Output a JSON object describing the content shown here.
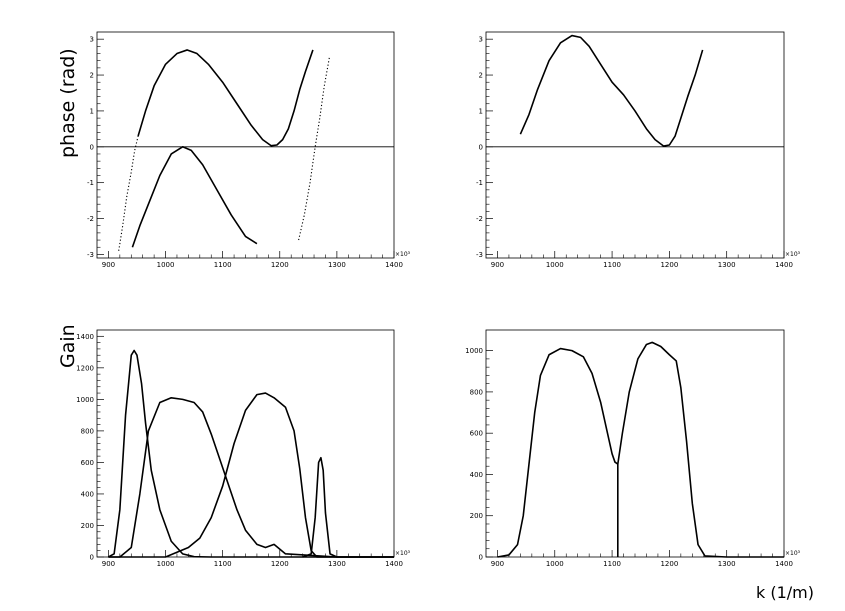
{
  "labels": {
    "phase_ylabel": "phase (rad)",
    "gain_ylabel": "Gain",
    "xlabel": "k (1/m)",
    "x_exponent": "×10³"
  },
  "chart_data": [
    {
      "type": "line",
      "panel": "top-left",
      "xlabel": "",
      "ylabel": "phase (rad)",
      "xlim": [
        880,
        1400
      ],
      "ylim": [
        -3.1,
        3.2
      ],
      "xticks": [
        900,
        1000,
        1100,
        1200,
        1300,
        1400
      ],
      "yticks": [
        -3,
        -2,
        -1,
        0,
        1,
        2,
        3
      ],
      "x_multiplier": "×10³",
      "hline": 0,
      "series": [
        {
          "style": "dotted",
          "x": [
            918,
            925,
            932,
            940,
            946,
            952
          ],
          "y": [
            -2.9,
            -2.2,
            -1.4,
            -0.7,
            -0.1,
            0.3
          ]
        },
        {
          "style": "solid",
          "x": [
            952,
            965,
            980,
            1000,
            1020,
            1038,
            1055,
            1075,
            1100,
            1125,
            1150,
            1170,
            1185,
            1195,
            1205,
            1215,
            1225,
            1235,
            1245,
            1258
          ],
          "y": [
            0.3,
            1.0,
            1.7,
            2.3,
            2.6,
            2.7,
            2.6,
            2.3,
            1.8,
            1.2,
            0.6,
            0.2,
            0.03,
            0.05,
            0.2,
            0.5,
            1.0,
            1.6,
            2.1,
            2.7
          ]
        },
        {
          "style": "solid",
          "x": [
            942,
            955,
            970,
            990,
            1010,
            1030,
            1045,
            1065,
            1090,
            1115,
            1140,
            1160
          ],
          "y": [
            -2.8,
            -2.2,
            -1.6,
            -0.8,
            -0.2,
            0.0,
            -0.1,
            -0.5,
            -1.2,
            -1.9,
            -2.5,
            -2.7
          ]
        },
        {
          "style": "dotted",
          "x": [
            1233,
            1243,
            1253,
            1262,
            1270,
            1278,
            1287
          ],
          "y": [
            -2.6,
            -1.9,
            -1.0,
            0.0,
            0.8,
            1.7,
            2.5
          ]
        }
      ]
    },
    {
      "type": "line",
      "panel": "top-right",
      "xlabel": "",
      "ylabel": "",
      "xlim": [
        880,
        1400
      ],
      "ylim": [
        -3.1,
        3.2
      ],
      "xticks": [
        900,
        1000,
        1100,
        1200,
        1300,
        1400
      ],
      "yticks": [
        -3,
        -2,
        -1,
        0,
        1,
        2,
        3
      ],
      "x_multiplier": "×10³",
      "hline": 0,
      "series": [
        {
          "style": "solid",
          "x": [
            940,
            955,
            970,
            990,
            1010,
            1030,
            1045,
            1060,
            1080,
            1100,
            1120,
            1140,
            1160,
            1175,
            1190,
            1200,
            1210,
            1220,
            1232,
            1245,
            1258
          ],
          "y": [
            0.35,
            0.9,
            1.6,
            2.4,
            2.9,
            3.1,
            3.05,
            2.8,
            2.3,
            1.8,
            1.45,
            1.0,
            0.5,
            0.2,
            0.02,
            0.05,
            0.3,
            0.8,
            1.4,
            2.0,
            2.7
          ]
        }
      ]
    },
    {
      "type": "line",
      "panel": "bottom-left",
      "xlabel": "",
      "ylabel": "Gain",
      "xlim": [
        880,
        1400
      ],
      "ylim": [
        0,
        1440
      ],
      "xticks": [
        900,
        1000,
        1100,
        1200,
        1300,
        1400
      ],
      "yticks": [
        0,
        200,
        400,
        600,
        800,
        1000,
        1200,
        1400
      ],
      "x_multiplier": "×10³",
      "series": [
        {
          "style": "solid",
          "x": [
            900,
            910,
            920,
            930,
            940,
            945,
            950,
            958,
            965,
            975,
            990,
            1010,
            1030,
            1050,
            1080,
            1100,
            1150,
            1200,
            1300,
            1400
          ],
          "y": [
            0,
            20,
            300,
            900,
            1280,
            1310,
            1280,
            1100,
            850,
            550,
            300,
            100,
            20,
            2,
            0,
            0,
            0,
            0,
            0,
            0
          ]
        },
        {
          "style": "solid",
          "x": [
            900,
            920,
            940,
            955,
            970,
            990,
            1010,
            1030,
            1050,
            1065,
            1080,
            1095,
            1110,
            1125,
            1140,
            1160,
            1175,
            1190,
            1210,
            1300,
            1400
          ],
          "y": [
            0,
            0,
            60,
            400,
            800,
            980,
            1010,
            1000,
            980,
            920,
            780,
            620,
            460,
            300,
            170,
            80,
            60,
            80,
            20,
            0,
            0
          ]
        },
        {
          "style": "solid",
          "x": [
            900,
            1000,
            1020,
            1040,
            1060,
            1080,
            1100,
            1120,
            1140,
            1160,
            1175,
            1190,
            1210,
            1225,
            1235,
            1245,
            1255,
            1265,
            1300,
            1400
          ],
          "y": [
            0,
            0,
            30,
            60,
            120,
            250,
            450,
            720,
            930,
            1030,
            1040,
            1010,
            950,
            800,
            560,
            250,
            40,
            0,
            0,
            0
          ]
        },
        {
          "style": "solid",
          "x": [
            1240,
            1255,
            1262,
            1268,
            1272,
            1276,
            1280,
            1288,
            1300,
            1400
          ],
          "y": [
            0,
            20,
            250,
            600,
            630,
            550,
            280,
            20,
            0,
            0
          ]
        }
      ]
    },
    {
      "type": "line",
      "panel": "bottom-right",
      "xlabel": "k (1/m)",
      "ylabel": "",
      "xlim": [
        880,
        1400
      ],
      "ylim": [
        0,
        1100
      ],
      "xticks": [
        900,
        1000,
        1100,
        1200,
        1300,
        1400
      ],
      "yticks": [
        0,
        200,
        400,
        600,
        800,
        1000
      ],
      "x_multiplier": "×10³",
      "series": [
        {
          "style": "solid",
          "x": [
            900,
            920,
            935,
            945,
            955,
            965,
            975,
            990,
            1010,
            1030,
            1050,
            1065,
            1080,
            1092,
            1100,
            1105,
            1110,
            1118,
            1130,
            1145,
            1160,
            1170,
            1185,
            1200,
            1212,
            1220,
            1230,
            1240,
            1250,
            1262,
            1300,
            1400
          ],
          "y": [
            0,
            10,
            60,
            200,
            450,
            700,
            880,
            980,
            1010,
            1000,
            970,
            890,
            750,
            600,
            500,
            460,
            450,
            600,
            800,
            960,
            1030,
            1040,
            1020,
            980,
            950,
            820,
            560,
            260,
            60,
            5,
            0,
            0
          ]
        },
        {
          "style": "solid",
          "x": [
            1110,
            1110
          ],
          "y": [
            0,
            450
          ]
        }
      ]
    }
  ]
}
